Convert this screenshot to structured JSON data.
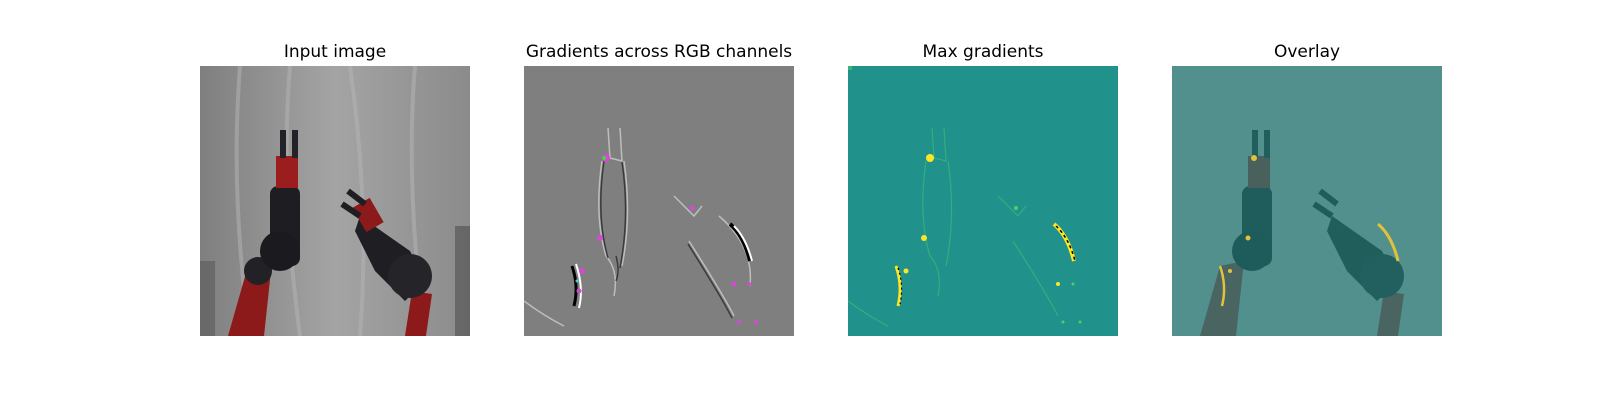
{
  "figure": {
    "panels": [
      {
        "title": "Input image"
      },
      {
        "title": "Gradients across RGB channels"
      },
      {
        "title": "Max gradients"
      },
      {
        "title": "Overlay"
      }
    ]
  },
  "colors": {
    "background": "#ffffff",
    "cloth": "#9a9a9a",
    "robot_red": "#8c1a1a",
    "robot_black": "#1e1e22",
    "gradient_gray": "#7f7f7f",
    "gradient_magenta": "#d24bd2",
    "viridis_teal": "#21918c",
    "viridis_yellow": "#fde725",
    "overlay_tint": "#3c8a86"
  }
}
